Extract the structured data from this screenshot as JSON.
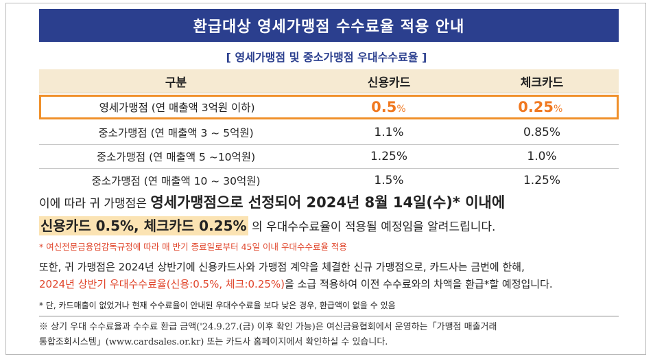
{
  "title": "환급대상 영세가맹점 수수료율 적용 안내",
  "subtitle": "[ 영세가맹점 및 중소가맹점 우대수수료율 ]",
  "table": {
    "headers": [
      "구분",
      "신용카드",
      "체크카드"
    ],
    "rows": [
      {
        "label": "영세가맹점 (연 매출액 3억원 이하)",
        "credit_num": "0.5",
        "credit_unit": "%",
        "check_num": "0.25",
        "check_unit": "%"
      },
      {
        "label": "중소가맹점 (연 매출액 3 ~ 5억원)",
        "credit": "1.1%",
        "check": "0.85%"
      },
      {
        "label": "중소가맹점 (연 매출액 5 ~10억원)",
        "credit": "1.25%",
        "check": "1.0%"
      },
      {
        "label": "중소가맹점 (연 매출액 10 ~ 30억원)",
        "credit": "1.5%",
        "check": "1.25%"
      }
    ]
  },
  "para1": {
    "lead": "이에 따라 귀 가맹점은 ",
    "bold": "영세가맹점으로 선정되어 2024년 8월 14일(수)* 이내에",
    "highlight": "신용카드 0.5%, 체크카드 0.25%",
    "tail": " 의 우대수수료율이 적용될 예정임을 알려드립니다."
  },
  "note1": "* 여신전문금융업감독규정에 따라 매 반기 종료일로부터 45일 이내 우대수수료율 적용",
  "para2": {
    "line1": "또한, 귀 가맹점은 2024년 상반기에 신용카드사와 가맹점 계약을 체결한 신규 가맹점으로, 카드사는 금번에 한해,",
    "red": "2024년 상반기 우대수수료율(신용:0.5%, 체크:0.25%)",
    "line2": "을 소급 적용하여 이전 수수료와의 차액을 환급*할 예정입니다."
  },
  "note2": "* 단, 카드매출이 없었거나 현재 수수료율이 안내된 우대수수료율 보다 낮은 경우, 환급액이 없을 수 있음",
  "footnote": {
    "line1": "※ 상기 우대 수수료율과 수수료 환급 금액('24.9.27.(금) 이후 확인 가능)은 여신금융협회에서 운영하는「가맹점 매출거래",
    "line2": "통합조회시스템」(www.cardsales.or.kr) 또는 카드사 홈페이지에서 확인하실 수 있습니다."
  }
}
